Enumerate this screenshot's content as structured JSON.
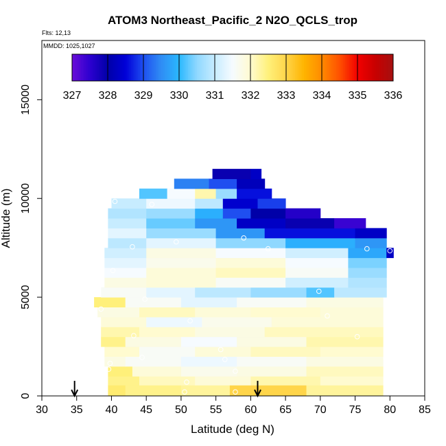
{
  "chart_data": {
    "type": "heatmap",
    "title": "ATOM3 Northeast_Pacific_2 N2O_QCLS_trop",
    "flights_label": "Flts: 12,13",
    "mmdd_label": "MMDD: 1025,1027",
    "xlabel": "Latitude (deg N)",
    "ylabel": "Altitude (m)",
    "xlim": [
      30,
      85
    ],
    "ylim": [
      0,
      18000
    ],
    "x_ticks": [
      30,
      35,
      40,
      45,
      50,
      55,
      60,
      65,
      70,
      75,
      80,
      85
    ],
    "y_ticks": [
      0,
      5000,
      10000,
      15000
    ],
    "colorbar": {
      "ticks": [
        327,
        328,
        329,
        330,
        331,
        332,
        333,
        334,
        335,
        336
      ],
      "range": [
        327,
        336
      ],
      "colors": [
        "#6a0dd8",
        "#2d00d0",
        "#0000a8",
        "#0000d8",
        "#1f4ff0",
        "#2f8df4",
        "#2ab8ff",
        "#8fd8ff",
        "#c7ecff",
        "#f6fbff",
        "#fffbd0",
        "#fff07a",
        "#ffd54a",
        "#ffb400",
        "#ff8a00",
        "#ff5000",
        "#f20000",
        "#c80000",
        "#a51010"
      ]
    },
    "bands": [
      {
        "y": [
          0,
          550
        ],
        "segments": [
          {
            "x0": 39.5,
            "x1": 42,
            "v": 332.6
          },
          {
            "x0": 42,
            "x1": 50,
            "v": 332.4
          },
          {
            "x0": 50,
            "x1": 57,
            "v": 332.3
          },
          {
            "x0": 57,
            "x1": 68,
            "v": 333.0
          },
          {
            "x0": 68,
            "x1": 79,
            "v": 332.3
          }
        ]
      },
      {
        "y": [
          550,
          1000
        ],
        "segments": [
          {
            "x0": 39.5,
            "x1": 44,
            "v": 332.4
          },
          {
            "x0": 44,
            "x1": 52,
            "v": 332.1
          },
          {
            "x0": 52,
            "x1": 60,
            "v": 331.9
          },
          {
            "x0": 60,
            "x1": 70,
            "v": 332.2
          },
          {
            "x0": 70,
            "x1": 79,
            "v": 332.0
          }
        ]
      },
      {
        "y": [
          1000,
          1500
        ],
        "segments": [
          {
            "x0": 39.5,
            "x1": 43,
            "v": 332.5
          },
          {
            "x0": 43,
            "x1": 50,
            "v": 331.9
          },
          {
            "x0": 50,
            "x1": 58,
            "v": 331.7
          },
          {
            "x0": 58,
            "x1": 68,
            "v": 331.8
          },
          {
            "x0": 68,
            "x1": 79,
            "v": 332.1
          }
        ]
      },
      {
        "y": [
          1500,
          2000
        ],
        "segments": [
          {
            "x0": 39.0,
            "x1": 42,
            "v": 331.8
          },
          {
            "x0": 42,
            "x1": 50,
            "v": 331.6
          },
          {
            "x0": 50,
            "x1": 58,
            "v": 331.4
          },
          {
            "x0": 58,
            "x1": 68,
            "v": 331.6
          },
          {
            "x0": 68,
            "x1": 79,
            "v": 331.8
          }
        ]
      },
      {
        "y": [
          2000,
          2500
        ],
        "segments": [
          {
            "x0": 39.0,
            "x1": 44,
            "v": 332.0
          },
          {
            "x0": 44,
            "x1": 52,
            "v": 331.6
          },
          {
            "x0": 52,
            "x1": 60,
            "v": 331.9
          },
          {
            "x0": 60,
            "x1": 70,
            "v": 332.1
          },
          {
            "x0": 70,
            "x1": 79,
            "v": 332.0
          }
        ]
      },
      {
        "y": [
          2500,
          3000
        ],
        "segments": [
          {
            "x0": 38.5,
            "x1": 42,
            "v": 332.4
          },
          {
            "x0": 42,
            "x1": 50,
            "v": 331.8
          },
          {
            "x0": 50,
            "x1": 58,
            "v": 331.5
          },
          {
            "x0": 58,
            "x1": 68,
            "v": 331.8
          },
          {
            "x0": 68,
            "x1": 79,
            "v": 332.2
          }
        ]
      },
      {
        "y": [
          3000,
          3500
        ],
        "segments": [
          {
            "x0": 38.5,
            "x1": 44,
            "v": 332.2
          },
          {
            "x0": 44,
            "x1": 52,
            "v": 332.0
          },
          {
            "x0": 52,
            "x1": 62,
            "v": 331.8
          },
          {
            "x0": 62,
            "x1": 79,
            "v": 332.1
          }
        ]
      },
      {
        "y": [
          3500,
          4000
        ],
        "segments": [
          {
            "x0": 38.5,
            "x1": 45,
            "v": 331.9
          },
          {
            "x0": 45,
            "x1": 53,
            "v": 331.4
          },
          {
            "x0": 53,
            "x1": 63,
            "v": 331.7
          },
          {
            "x0": 63,
            "x1": 79,
            "v": 331.9
          }
        ]
      },
      {
        "y": [
          4000,
          4500
        ],
        "segments": [
          {
            "x0": 38.0,
            "x1": 44,
            "v": 331.8
          },
          {
            "x0": 44,
            "x1": 52,
            "v": 332.1
          },
          {
            "x0": 52,
            "x1": 60,
            "v": 331.9
          },
          {
            "x0": 60,
            "x1": 70,
            "v": 332.0
          },
          {
            "x0": 70,
            "x1": 79,
            "v": 331.9
          }
        ]
      },
      {
        "y": [
          4500,
          5000
        ],
        "segments": [
          {
            "x0": 37.5,
            "x1": 42,
            "v": 332.5
          },
          {
            "x0": 42,
            "x1": 50,
            "v": 331.6
          },
          {
            "x0": 50,
            "x1": 58,
            "v": 331.3
          },
          {
            "x0": 58,
            "x1": 68,
            "v": 331.6
          },
          {
            "x0": 68,
            "x1": 79,
            "v": 331.8
          }
        ]
      },
      {
        "y": [
          5000,
          5500
        ],
        "segments": [
          {
            "x0": 38.5,
            "x1": 45,
            "v": 331.6
          },
          {
            "x0": 45,
            "x1": 52,
            "v": 331.3
          },
          {
            "x0": 52,
            "x1": 60,
            "v": 330.9
          },
          {
            "x0": 60,
            "x1": 68,
            "v": 330.6
          },
          {
            "x0": 68,
            "x1": 72,
            "v": 330.2
          },
          {
            "x0": 72,
            "x1": 79.5,
            "v": 330.9
          }
        ]
      },
      {
        "y": [
          5500,
          6000
        ],
        "segments": [
          {
            "x0": 39.0,
            "x1": 45,
            "v": 331.8
          },
          {
            "x0": 45,
            "x1": 55,
            "v": 331.9
          },
          {
            "x0": 55,
            "x1": 65,
            "v": 331.6
          },
          {
            "x0": 65,
            "x1": 74,
            "v": 331.1
          },
          {
            "x0": 74,
            "x1": 79.5,
            "v": 330.8
          }
        ]
      },
      {
        "y": [
          6000,
          6500
        ],
        "segments": [
          {
            "x0": 39.0,
            "x1": 45,
            "v": 331.5
          },
          {
            "x0": 45,
            "x1": 55,
            "v": 331.9
          },
          {
            "x0": 55,
            "x1": 65,
            "v": 332.1
          },
          {
            "x0": 65,
            "x1": 74,
            "v": 331.6
          },
          {
            "x0": 74,
            "x1": 79.5,
            "v": 330.6
          }
        ]
      },
      {
        "y": [
          6500,
          7000
        ],
        "segments": [
          {
            "x0": 39.0,
            "x1": 45,
            "v": 331.3
          },
          {
            "x0": 45,
            "x1": 55,
            "v": 331.7
          },
          {
            "x0": 55,
            "x1": 65,
            "v": 331.9
          },
          {
            "x0": 65,
            "x1": 74,
            "v": 331.5
          },
          {
            "x0": 74,
            "x1": 79.5,
            "v": 330.4
          }
        ]
      },
      {
        "y": [
          7000,
          7500
        ],
        "segments": [
          {
            "x0": 39.0,
            "x1": 45,
            "v": 331.1
          },
          {
            "x0": 45,
            "x1": 55,
            "v": 331.8
          },
          {
            "x0": 55,
            "x1": 65,
            "v": 331.5
          },
          {
            "x0": 65,
            "x1": 74,
            "v": 331.1
          },
          {
            "x0": 74,
            "x1": 79.5,
            "v": 329.8
          },
          {
            "x0": 79.5,
            "x1": 80.5,
            "v": 328.3
          }
        ]
      },
      {
        "y": [
          7500,
          8000
        ],
        "segments": [
          {
            "x0": 39.5,
            "x1": 45,
            "v": 330.9
          },
          {
            "x0": 45,
            "x1": 55,
            "v": 331.3
          },
          {
            "x0": 55,
            "x1": 65,
            "v": 330.5
          },
          {
            "x0": 65,
            "x1": 75,
            "v": 329.9
          },
          {
            "x0": 75,
            "x1": 79.5,
            "v": 329.6
          }
        ]
      },
      {
        "y": [
          8000,
          8500
        ],
        "segments": [
          {
            "x0": 39.5,
            "x1": 45,
            "v": 331.3
          },
          {
            "x0": 45,
            "x1": 55,
            "v": 330.6
          },
          {
            "x0": 55,
            "x1": 62,
            "v": 329.6
          },
          {
            "x0": 62,
            "x1": 75,
            "v": 328.6
          },
          {
            "x0": 75,
            "x1": 79.5,
            "v": 328.3
          }
        ]
      },
      {
        "y": [
          8500,
          9000
        ],
        "segments": [
          {
            "x0": 39.5,
            "x1": 45,
            "v": 331.0
          },
          {
            "x0": 45,
            "x1": 52,
            "v": 330.3
          },
          {
            "x0": 52,
            "x1": 58,
            "v": 329.6
          },
          {
            "x0": 58,
            "x1": 65,
            "v": 328.3
          },
          {
            "x0": 65,
            "x1": 72,
            "v": 327.9
          },
          {
            "x0": 72,
            "x1": 76.5,
            "v": 327.4
          }
        ]
      },
      {
        "y": [
          9000,
          9500
        ],
        "segments": [
          {
            "x0": 39.5,
            "x1": 45,
            "v": 330.8
          },
          {
            "x0": 45,
            "x1": 52,
            "v": 330.6
          },
          {
            "x0": 52,
            "x1": 56,
            "v": 329.9
          },
          {
            "x0": 56,
            "x1": 60,
            "v": 329.0
          },
          {
            "x0": 60,
            "x1": 65,
            "v": 328.0
          },
          {
            "x0": 65,
            "x1": 70,
            "v": 327.6
          }
        ]
      },
      {
        "y": [
          9500,
          10000
        ],
        "segments": [
          {
            "x0": 40.0,
            "x1": 45,
            "v": 331.0
          },
          {
            "x0": 45,
            "x1": 52,
            "v": 331.4
          },
          {
            "x0": 52,
            "x1": 56,
            "v": 330.9
          },
          {
            "x0": 56,
            "x1": 61,
            "v": 328.4
          },
          {
            "x0": 61,
            "x1": 65,
            "v": 328.9
          }
        ]
      },
      {
        "y": [
          10000,
          10500
        ],
        "segments": [
          {
            "x0": 44,
            "x1": 48,
            "v": 330.2
          },
          {
            "x0": 48,
            "x1": 52,
            "v": 331.5
          },
          {
            "x0": 52,
            "x1": 55,
            "v": 332.2
          },
          {
            "x0": 55,
            "x1": 58,
            "v": 330.6
          },
          {
            "x0": 58,
            "x1": 63,
            "v": 328.6
          }
        ]
      },
      {
        "y": [
          10500,
          11000
        ],
        "segments": [
          {
            "x0": 49,
            "x1": 54,
            "v": 329.4
          },
          {
            "x0": 54,
            "x1": 58,
            "v": 329.0
          },
          {
            "x0": 58,
            "x1": 62,
            "v": 328.2
          }
        ]
      },
      {
        "y": [
          11000,
          11500
        ],
        "segments": [
          {
            "x0": 54.5,
            "x1": 60,
            "v": 327.9
          },
          {
            "x0": 60,
            "x1": 61.5,
            "v": 328.3
          }
        ]
      }
    ],
    "sample_points": [
      {
        "x": 40.5,
        "y": 9850
      },
      {
        "x": 45.8,
        "y": 9700
      },
      {
        "x": 43.0,
        "y": 7550
      },
      {
        "x": 49.3,
        "y": 7800
      },
      {
        "x": 59.0,
        "y": 8000
      },
      {
        "x": 62.5,
        "y": 7450
      },
      {
        "x": 76.7,
        "y": 7450
      },
      {
        "x": 80.0,
        "y": 7350
      },
      {
        "x": 40.2,
        "y": 6350
      },
      {
        "x": 69.8,
        "y": 5300
      },
      {
        "x": 44.8,
        "y": 4900
      },
      {
        "x": 38.5,
        "y": 4400
      },
      {
        "x": 51.3,
        "y": 3800
      },
      {
        "x": 71.0,
        "y": 4050
      },
      {
        "x": 43.2,
        "y": 3050
      },
      {
        "x": 75.3,
        "y": 3000
      },
      {
        "x": 55.7,
        "y": 2350
      },
      {
        "x": 56.3,
        "y": 1850
      },
      {
        "x": 44.4,
        "y": 1950
      },
      {
        "x": 39.8,
        "y": 1650
      },
      {
        "x": 39.6,
        "y": 1350
      },
      {
        "x": 57.8,
        "y": 1250
      },
      {
        "x": 50.8,
        "y": 700
      },
      {
        "x": 50.5,
        "y": 200
      },
      {
        "x": 57.8,
        "y": 200
      },
      {
        "x": 79.4,
        "y": 1900
      }
    ],
    "arrows_x": [
      34.7,
      61.0
    ]
  }
}
